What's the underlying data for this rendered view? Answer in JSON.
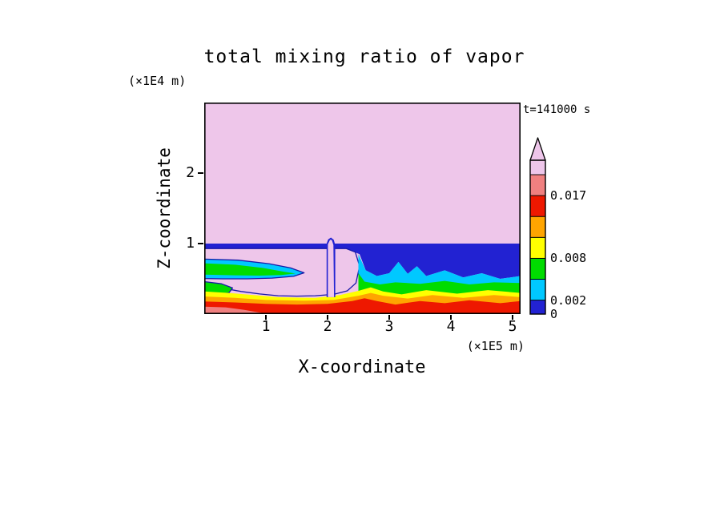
{
  "chart_data": {
    "type": "filled_contour",
    "title": "total mixing ratio of vapor",
    "time_label": "t=141000 s",
    "x_axis": {
      "label": "X-coordinate",
      "unit": "(×1E5 m)",
      "ticks": [
        1,
        2,
        3,
        4,
        5
      ],
      "range": [
        0,
        5.13
      ]
    },
    "z_axis": {
      "label": "Z-coordinate",
      "unit": "(×1E4 m)",
      "ticks": [
        1,
        2
      ],
      "range": [
        0,
        3.0
      ]
    },
    "colorbar": {
      "levels": [
        0,
        0.002,
        0.005,
        0.008,
        0.011,
        0.014,
        0.017,
        0.02
      ],
      "segment_colors": [
        "navy",
        "cyan",
        "green",
        "yellow",
        "orange",
        "red",
        "salmon"
      ],
      "over_color": "pink",
      "labels": [
        {
          "text": "0.017",
          "value": 0.017
        },
        {
          "text": "0.008",
          "value": 0.008
        },
        {
          "text": "0.002",
          "value": 0.002
        },
        {
          "text": "0",
          "value": 0
        }
      ]
    },
    "palette": {
      "navy": "#2222d2",
      "cyan": "#00c8ff",
      "green": "#00dc00",
      "yellow": "#ffff00",
      "orange": "#ffa500",
      "red": "#ee1800",
      "salmon": "#f08080",
      "pink": "#eec6ea",
      "outline": "#1818a8",
      "frame": "#000000"
    },
    "regions": [
      {
        "name": "background",
        "color": "pink",
        "stroke": false,
        "points": [
          [
            0,
            0
          ],
          [
            5.13,
            0
          ],
          [
            5.13,
            3
          ],
          [
            0,
            3
          ]
        ]
      },
      {
        "name": "navy-layer",
        "color": "navy",
        "stroke": false,
        "points": [
          [
            0,
            1.0
          ],
          [
            5.13,
            1.0
          ],
          [
            5.13,
            0.54
          ],
          [
            4.8,
            0.5
          ],
          [
            4.5,
            0.58
          ],
          [
            4.2,
            0.52
          ],
          [
            3.9,
            0.62
          ],
          [
            3.6,
            0.54
          ],
          [
            3.45,
            0.68
          ],
          [
            3.3,
            0.57
          ],
          [
            3.15,
            0.74
          ],
          [
            3.0,
            0.58
          ],
          [
            2.8,
            0.54
          ],
          [
            2.62,
            0.62
          ],
          [
            2.52,
            0.85
          ],
          [
            2.32,
            0.92
          ],
          [
            0,
            0.92
          ]
        ]
      },
      {
        "name": "pink-intrusion",
        "color": "pink",
        "stroke": true,
        "points": [
          [
            0,
            0.93
          ],
          [
            2.3,
            0.93
          ],
          [
            2.45,
            0.88
          ],
          [
            2.52,
            0.68
          ],
          [
            2.46,
            0.44
          ],
          [
            2.32,
            0.33
          ],
          [
            2.1,
            0.28
          ],
          [
            1.8,
            0.26
          ],
          [
            1.5,
            0.255
          ],
          [
            1.2,
            0.26
          ],
          [
            0.9,
            0.285
          ],
          [
            0.6,
            0.32
          ],
          [
            0.35,
            0.36
          ],
          [
            0.15,
            0.42
          ],
          [
            0,
            0.46
          ]
        ]
      },
      {
        "name": "cyan-right",
        "color": "cyan",
        "stroke": false,
        "points": [
          [
            2.5,
            0.85
          ],
          [
            2.62,
            0.62
          ],
          [
            2.8,
            0.54
          ],
          [
            3.0,
            0.58
          ],
          [
            3.15,
            0.74
          ],
          [
            3.3,
            0.57
          ],
          [
            3.45,
            0.68
          ],
          [
            3.6,
            0.54
          ],
          [
            3.9,
            0.62
          ],
          [
            4.2,
            0.52
          ],
          [
            4.5,
            0.58
          ],
          [
            4.8,
            0.5
          ],
          [
            5.13,
            0.54
          ],
          [
            5.13,
            0
          ],
          [
            2.5,
            0
          ]
        ]
      },
      {
        "name": "green-right",
        "color": "green",
        "stroke": false,
        "points": [
          [
            2.5,
            0.58
          ],
          [
            2.6,
            0.46
          ],
          [
            2.85,
            0.42
          ],
          [
            3.1,
            0.45
          ],
          [
            3.5,
            0.43
          ],
          [
            3.9,
            0.47
          ],
          [
            4.3,
            0.42
          ],
          [
            4.7,
            0.45
          ],
          [
            5.13,
            0.44
          ],
          [
            5.13,
            0
          ],
          [
            2.5,
            0
          ]
        ]
      },
      {
        "name": "cyan-tongue",
        "color": "cyan",
        "stroke": true,
        "points": [
          [
            0,
            0.78
          ],
          [
            0.55,
            0.765
          ],
          [
            1.05,
            0.715
          ],
          [
            1.4,
            0.655
          ],
          [
            1.62,
            0.585
          ],
          [
            1.45,
            0.535
          ],
          [
            1.1,
            0.51
          ],
          [
            0.7,
            0.5
          ],
          [
            0.3,
            0.5
          ],
          [
            0,
            0.505
          ]
        ]
      },
      {
        "name": "green-tongue",
        "color": "green",
        "stroke": false,
        "points": [
          [
            0,
            0.72
          ],
          [
            0.5,
            0.7
          ],
          [
            0.95,
            0.655
          ],
          [
            1.3,
            0.6
          ],
          [
            1.48,
            0.575
          ],
          [
            1.25,
            0.555
          ],
          [
            0.9,
            0.545
          ],
          [
            0.5,
            0.55
          ],
          [
            0,
            0.56
          ]
        ]
      },
      {
        "name": "green-left-patch",
        "color": "green",
        "stroke": true,
        "points": [
          [
            0,
            0.46
          ],
          [
            0.28,
            0.43
          ],
          [
            0.46,
            0.37
          ],
          [
            0.4,
            0.3
          ],
          [
            0.2,
            0.28
          ],
          [
            0,
            0.285
          ]
        ]
      },
      {
        "name": "yellow-layer",
        "color": "yellow",
        "stroke": false,
        "points": [
          [
            0,
            0.32
          ],
          [
            0.4,
            0.3
          ],
          [
            0.8,
            0.27
          ],
          [
            1.2,
            0.24
          ],
          [
            1.8,
            0.23
          ],
          [
            2.2,
            0.27
          ],
          [
            2.5,
            0.33
          ],
          [
            2.7,
            0.38
          ],
          [
            2.9,
            0.32
          ],
          [
            3.2,
            0.28
          ],
          [
            3.6,
            0.34
          ],
          [
            4.1,
            0.29
          ],
          [
            4.6,
            0.34
          ],
          [
            5.13,
            0.3
          ],
          [
            5.13,
            0
          ],
          [
            0,
            0
          ]
        ]
      },
      {
        "name": "orange-layer",
        "color": "orange",
        "stroke": false,
        "points": [
          [
            0,
            0.25
          ],
          [
            0.5,
            0.23
          ],
          [
            1.0,
            0.2
          ],
          [
            1.6,
            0.19
          ],
          [
            2.1,
            0.2
          ],
          [
            2.5,
            0.26
          ],
          [
            2.7,
            0.3
          ],
          [
            2.9,
            0.26
          ],
          [
            3.3,
            0.22
          ],
          [
            3.7,
            0.27
          ],
          [
            4.2,
            0.23
          ],
          [
            4.7,
            0.27
          ],
          [
            5.13,
            0.24
          ],
          [
            5.13,
            0
          ],
          [
            0,
            0
          ]
        ]
      },
      {
        "name": "red-layer",
        "color": "red",
        "stroke": false,
        "points": [
          [
            0,
            0.18
          ],
          [
            0.5,
            0.165
          ],
          [
            1.0,
            0.145
          ],
          [
            1.5,
            0.135
          ],
          [
            2.0,
            0.145
          ],
          [
            2.4,
            0.185
          ],
          [
            2.6,
            0.225
          ],
          [
            2.8,
            0.185
          ],
          [
            3.1,
            0.135
          ],
          [
            3.5,
            0.185
          ],
          [
            3.9,
            0.155
          ],
          [
            4.3,
            0.195
          ],
          [
            4.8,
            0.155
          ],
          [
            5.13,
            0.185
          ],
          [
            5.13,
            0
          ],
          [
            0,
            0
          ]
        ]
      },
      {
        "name": "salmon-patch",
        "color": "salmon",
        "stroke": false,
        "points": [
          [
            0,
            0.105
          ],
          [
            0.35,
            0.095
          ],
          [
            0.65,
            0.06
          ],
          [
            0.95,
            0.015
          ],
          [
            1.0,
            0
          ],
          [
            0,
            0
          ]
        ]
      },
      {
        "name": "spike-outline",
        "color": "navy",
        "stroke": false,
        "points": [
          [
            1.985,
            0.24
          ],
          [
            1.985,
            1.0
          ],
          [
            2.01,
            1.06
          ],
          [
            2.055,
            1.085
          ],
          [
            2.1,
            1.055
          ],
          [
            2.125,
            0.98
          ],
          [
            2.125,
            0.24
          ]
        ]
      },
      {
        "name": "spike-core",
        "color": "pink",
        "stroke": false,
        "points": [
          [
            2.005,
            0.24
          ],
          [
            2.005,
            0.99
          ],
          [
            2.04,
            1.055
          ],
          [
            2.07,
            1.05
          ],
          [
            2.095,
            0.98
          ],
          [
            2.105,
            0.24
          ]
        ]
      }
    ]
  }
}
